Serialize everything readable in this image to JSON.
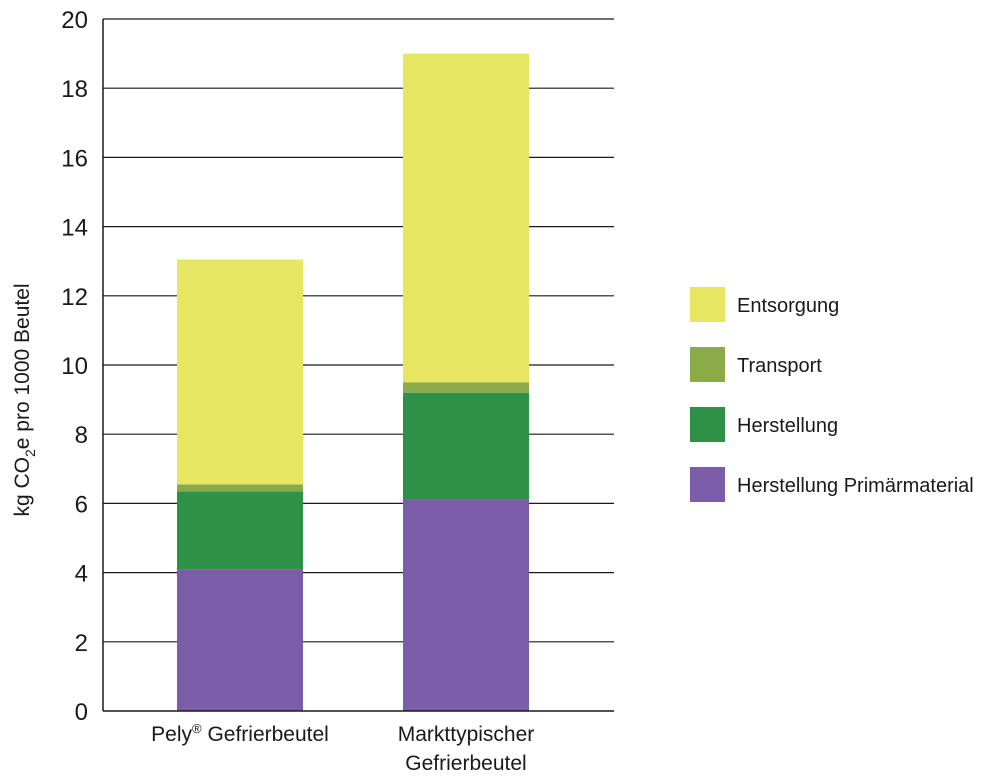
{
  "chart_data": {
    "type": "bar",
    "stacked": true,
    "categories": [
      "Pely® Gefrierbeutel",
      "Markttypischer Gefrierbeutel"
    ],
    "category_lines": [
      [
        "Pely® Gefrierbeutel"
      ],
      [
        "Markttypischer",
        "Gefrierbeutel"
      ]
    ],
    "series": [
      {
        "name": "Herstellung Primärmaterial",
        "color": "#7b5ca8",
        "values": [
          4.1,
          6.1
        ]
      },
      {
        "name": "Herstellung",
        "color": "#2e9147",
        "values": [
          2.25,
          3.1
        ]
      },
      {
        "name": "Transport",
        "color": "#8aab48",
        "values": [
          0.2,
          0.3
        ]
      },
      {
        "name": "Entsorgung",
        "color": "#e6e663",
        "values": [
          6.5,
          9.5
        ]
      }
    ],
    "ylabel_parts": [
      "kg CO",
      "2",
      "e pro 1000 Beutel"
    ],
    "ylim": [
      0,
      20
    ],
    "yticks": [
      "0",
      "2",
      "4",
      "6",
      "8",
      "10",
      "12",
      "14",
      "16",
      "18",
      "20"
    ],
    "grid": true,
    "legend_position": "right",
    "legend_order": [
      "Entsorgung",
      "Transport",
      "Herstellung",
      "Herstellung Primärmaterial"
    ]
  }
}
